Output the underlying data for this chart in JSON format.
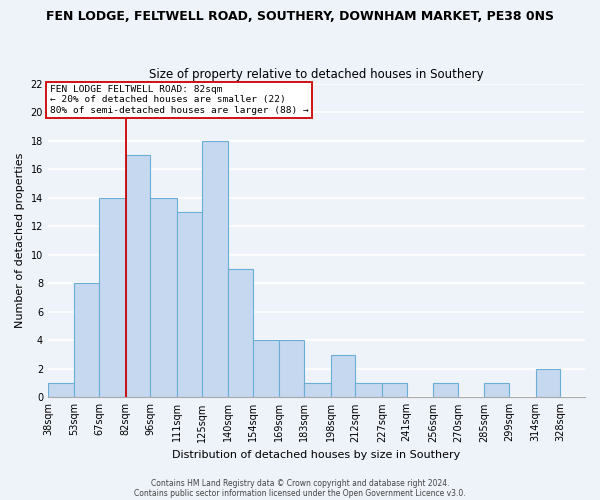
{
  "title": "FEN LODGE, FELTWELL ROAD, SOUTHERY, DOWNHAM MARKET, PE38 0NS",
  "subtitle": "Size of property relative to detached houses in Southery",
  "xlabel": "Distribution of detached houses by size in Southery",
  "ylabel": "Number of detached properties",
  "bar_color": "#c5d8f0",
  "bar_edge_color": "#6aaed6",
  "bin_edges": [
    38,
    53,
    67,
    82,
    96,
    111,
    125,
    140,
    154,
    169,
    183,
    198,
    212,
    227,
    241,
    256,
    270,
    285,
    299,
    314,
    328,
    342
  ],
  "counts": [
    1,
    8,
    14,
    17,
    14,
    13,
    18,
    9,
    4,
    4,
    1,
    3,
    1,
    1,
    0,
    1,
    0,
    1,
    0,
    2,
    0
  ],
  "bin_labels": [
    "38sqm",
    "53sqm",
    "67sqm",
    "82sqm",
    "96sqm",
    "111sqm",
    "125sqm",
    "140sqm",
    "154sqm",
    "169sqm",
    "183sqm",
    "198sqm",
    "212sqm",
    "227sqm",
    "241sqm",
    "256sqm",
    "270sqm",
    "285sqm",
    "299sqm",
    "314sqm",
    "328sqm"
  ],
  "ylim": [
    0,
    22
  ],
  "yticks": [
    0,
    2,
    4,
    6,
    8,
    10,
    12,
    14,
    16,
    18,
    20,
    22
  ],
  "vline_x": 82,
  "vline_color": "#cc0000",
  "annotation_line1": "FEN LODGE FELTWELL ROAD: 82sqm",
  "annotation_line2": "← 20% of detached houses are smaller (22)",
  "annotation_line3": "80% of semi-detached houses are larger (88) →",
  "annotation_box_color": "#ffffff",
  "annotation_box_edge": "#cc0000",
  "footer1": "Contains HM Land Registry data © Crown copyright and database right 2024.",
  "footer2": "Contains public sector information licensed under the Open Government Licence v3.0.",
  "bg_color": "#eef2f9",
  "grid_color": "#ffffff",
  "title_fontsize": 9,
  "subtitle_fontsize": 8.5,
  "ylabel_fontsize": 8,
  "xlabel_fontsize": 8,
  "tick_fontsize": 7,
  "footer_fontsize": 5.5
}
